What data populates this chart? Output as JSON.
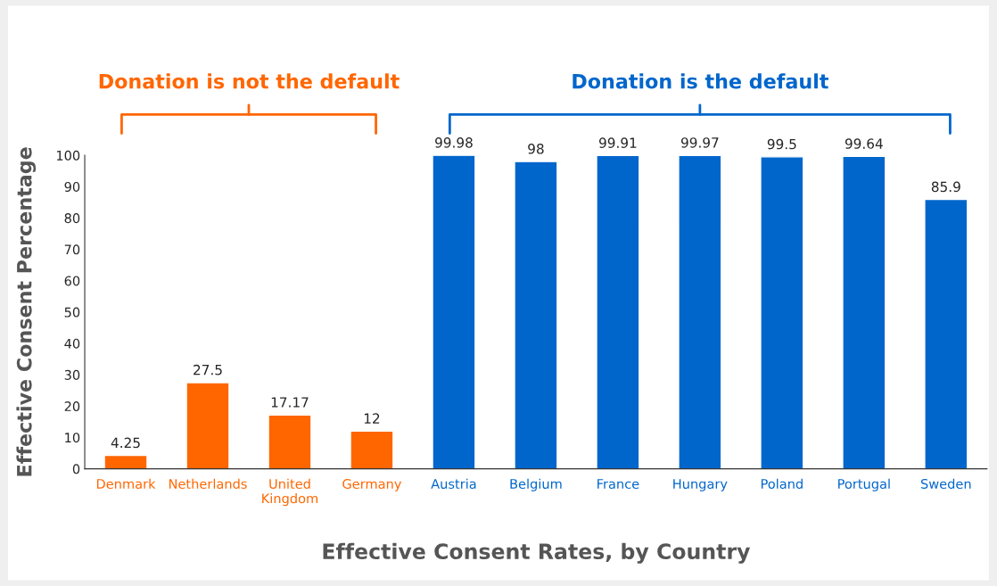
{
  "chart_data": {
    "type": "bar",
    "categories": [
      "Denmark",
      "Netherlands",
      "United Kingdom",
      "Germany",
      "Austria",
      "Belgium",
      "France",
      "Hungary",
      "Poland",
      "Portugal",
      "Sweden"
    ],
    "values": [
      4.25,
      27.5,
      17.17,
      12,
      99.98,
      98,
      99.91,
      99.97,
      99.5,
      99.64,
      85.9
    ],
    "colors": [
      "#ff6600",
      "#ff6600",
      "#ff6600",
      "#ff6600",
      "#0066cc",
      "#0066cc",
      "#0066cc",
      "#0066cc",
      "#0066cc",
      "#0066cc",
      "#0066cc"
    ],
    "data_labels": true,
    "ylim": [
      0,
      100
    ],
    "yticks": [
      0,
      10,
      20,
      30,
      40,
      50,
      60,
      70,
      80,
      90,
      100
    ],
    "grid": false,
    "legend": false,
    "xlabel": "Effective Consent Rates, by Country",
    "ylabel": "Effective Consent Percentage",
    "annotations": [
      "Donation is not the default",
      "Donation is the default"
    ]
  }
}
